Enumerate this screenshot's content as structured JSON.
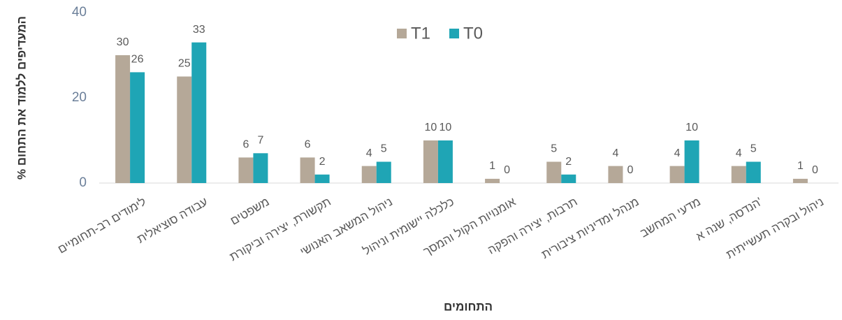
{
  "chart_data": {
    "type": "bar",
    "y_label": "% המעדיפים ללמוד את התחום",
    "x_label": "התחומים",
    "categories": [
      "לימודים רב-תחומיים",
      "עבודה סוציאלית",
      "משפטים",
      "תקשורת, יצירה וביקורת",
      "ניהול המשאב האנושי",
      "כלכלה יישומית וניהול",
      "אומנויות הקול והמסך",
      "תרבות, יצירה והפקה",
      "מנהל ומדיניות ציבורית",
      "מדעי המחשב",
      "הנדסה, שנה א'",
      "ניהול ובקרה תעשייתית"
    ],
    "series": [
      {
        "name": "T1",
        "color": "#b5a898",
        "values": [
          30,
          25,
          6,
          6,
          4,
          10,
          1,
          5,
          4,
          4,
          4,
          1
        ]
      },
      {
        "name": "T0",
        "color": "#1fa5b5",
        "values": [
          26,
          33,
          7,
          2,
          5,
          10,
          0,
          2,
          0,
          10,
          5,
          0
        ]
      }
    ],
    "ylim": [
      0,
      40
    ],
    "yticks": [
      0,
      20,
      40
    ],
    "grid": false,
    "legend": "top"
  }
}
